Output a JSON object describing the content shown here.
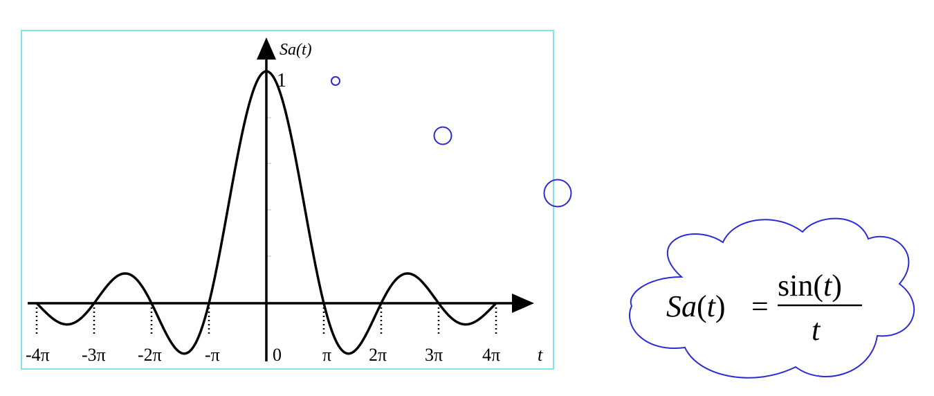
{
  "plot": {
    "y_label": "Sa(t)",
    "x_label": "t",
    "peak_label": "1",
    "origin_label": "0",
    "x_tick_labels": [
      "-4π",
      "-3π",
      "-2π",
      "-π",
      "π",
      "2π",
      "3π",
      "4π"
    ],
    "frame_color": "#7fe3ec",
    "curve_color": "#000000"
  },
  "formula": {
    "lhs": "Sa",
    "arg": "t",
    "numerator_fn": "sin",
    "numerator_arg": "t",
    "denominator": "t",
    "cloud_color": "#2b2bd6"
  }
}
